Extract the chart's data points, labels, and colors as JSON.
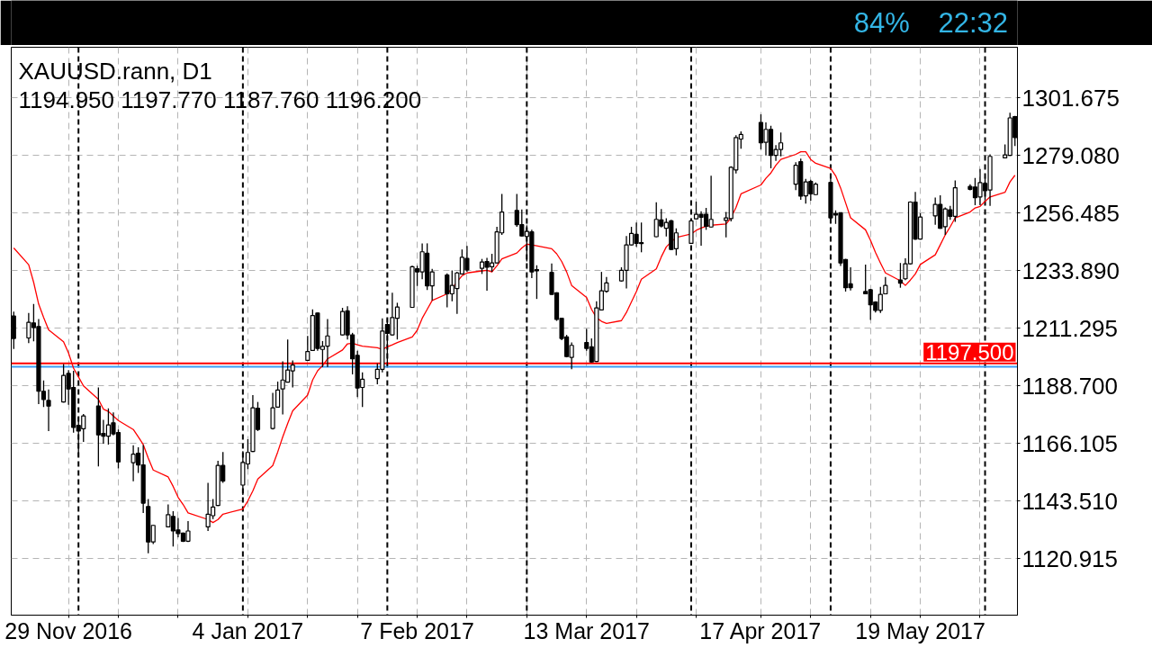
{
  "chart_data": {
    "type": "candlestick",
    "title": "XAUUSD.rann, D1",
    "subtitle": "1194.950 1197.770 1187.760 1196.200",
    "color": "#000000",
    "x": [
      "2016-11-18",
      "2016-11-21",
      "2016-11-22",
      "2016-11-23",
      "2016-11-24",
      "2016-11-25",
      "2016-11-28",
      "2016-11-29",
      "2016-11-30",
      "2016-12-01",
      "2016-12-02",
      "2016-12-05",
      "2016-12-06",
      "2016-12-07",
      "2016-12-08",
      "2016-12-09",
      "2016-12-12",
      "2016-12-13",
      "2016-12-14",
      "2016-12-15",
      "2016-12-16",
      "2016-12-19",
      "2016-12-20",
      "2016-12-21",
      "2016-12-22",
      "2016-12-23",
      "2016-12-27",
      "2016-12-28",
      "2016-12-29",
      "2016-12-30",
      "2017-01-03",
      "2017-01-04",
      "2017-01-05",
      "2017-01-06",
      "2017-01-09",
      "2017-01-10",
      "2017-01-11",
      "2017-01-12",
      "2017-01-13",
      "2017-01-16",
      "2017-01-17",
      "2017-01-18",
      "2017-01-19",
      "2017-01-20",
      "2017-01-23",
      "2017-01-24",
      "2017-01-25",
      "2017-01-26",
      "2017-01-27",
      "2017-01-30",
      "2017-01-31",
      "2017-02-01",
      "2017-02-02",
      "2017-02-03",
      "2017-02-06",
      "2017-02-07",
      "2017-02-08",
      "2017-02-09",
      "2017-02-10",
      "2017-02-13",
      "2017-02-14",
      "2017-02-15",
      "2017-02-16",
      "2017-02-17",
      "2017-02-20",
      "2017-02-21",
      "2017-02-22",
      "2017-02-23",
      "2017-02-24",
      "2017-02-27",
      "2017-02-28",
      "2017-03-01",
      "2017-03-02",
      "2017-03-03",
      "2017-03-06",
      "2017-03-07",
      "2017-03-08",
      "2017-03-09",
      "2017-03-10",
      "2017-03-13",
      "2017-03-14",
      "2017-03-15",
      "2017-03-16",
      "2017-03-17",
      "2017-03-20",
      "2017-03-21",
      "2017-03-22",
      "2017-03-23",
      "2017-03-24",
      "2017-03-27",
      "2017-03-28",
      "2017-03-29",
      "2017-03-30",
      "2017-03-31",
      "2017-04-03",
      "2017-04-04",
      "2017-04-05",
      "2017-04-06",
      "2017-04-07",
      "2017-04-10",
      "2017-04-11",
      "2017-04-12",
      "2017-04-13",
      "2017-04-17",
      "2017-04-18",
      "2017-04-19",
      "2017-04-20",
      "2017-04-21",
      "2017-04-24",
      "2017-04-25",
      "2017-04-26",
      "2017-04-27",
      "2017-04-28",
      "2017-05-01",
      "2017-05-02",
      "2017-05-03",
      "2017-05-04",
      "2017-05-05",
      "2017-05-08",
      "2017-05-09",
      "2017-05-10",
      "2017-05-11",
      "2017-05-12",
      "2017-05-15",
      "2017-05-16",
      "2017-05-17",
      "2017-05-18",
      "2017-05-19",
      "2017-05-22",
      "2017-05-23",
      "2017-05-24",
      "2017-05-25",
      "2017-05-26",
      "2017-05-29",
      "2017-05-30",
      "2017-05-31",
      "2017-06-01",
      "2017-06-02",
      "2017-06-05",
      "2017-06-06",
      "2017-06-07"
    ],
    "ohlc": [
      [
        1216.1,
        1217.8,
        1203.2,
        1207.3
      ],
      [
        1207.5,
        1217.3,
        1205.5,
        1213.6
      ],
      [
        1213.4,
        1220.8,
        1206.2,
        1211.6
      ],
      [
        1212.0,
        1214.9,
        1181.6,
        1186.6
      ],
      [
        1186.6,
        1190.8,
        1180.4,
        1183.4
      ],
      [
        1183.0,
        1187.3,
        1171.0,
        1180.8
      ],
      [
        1182.4,
        1197.3,
        1182.2,
        1192.8
      ],
      [
        1193.6,
        1194.9,
        1181.3,
        1187.5
      ],
      [
        1188.1,
        1194.6,
        1170.4,
        1172.4
      ],
      [
        1173.2,
        1176.3,
        1161.0,
        1171.0
      ],
      [
        1171.9,
        1177.7,
        1166.7,
        1176.9
      ],
      [
        1180.8,
        1188.1,
        1157.1,
        1169.5
      ],
      [
        1170.1,
        1175.4,
        1166.0,
        1169.0
      ],
      [
        1169.0,
        1179.9,
        1165.7,
        1173.4
      ],
      [
        1174.2,
        1178.3,
        1169.3,
        1169.9
      ],
      [
        1170.4,
        1171.6,
        1156.3,
        1158.9
      ],
      [
        1158.6,
        1165.4,
        1151.3,
        1161.9
      ],
      [
        1162.3,
        1164.6,
        1154.6,
        1157.7
      ],
      [
        1157.7,
        1165.5,
        1138.9,
        1142.7
      ],
      [
        1141.4,
        1144.3,
        1123.1,
        1127.5
      ],
      [
        1127.5,
        1134.2,
        1126.7,
        1134.0
      ],
      [
        1133.4,
        1142.2,
        1133.2,
        1138.2
      ],
      [
        1137.5,
        1139.6,
        1125.7,
        1131.8
      ],
      [
        1132.2,
        1136.9,
        1129.3,
        1130.8
      ],
      [
        1131.0,
        1131.2,
        1127.5,
        1127.8
      ],
      [
        1127.8,
        1135.7,
        1127.5,
        1131.8
      ],
      [
        1133.4,
        1150.7,
        1131.8,
        1138.4
      ],
      [
        1137.8,
        1144.3,
        1136.5,
        1141.2
      ],
      [
        1141.8,
        1159.3,
        1141.6,
        1157.5
      ],
      [
        1157.5,
        1162.8,
        1150.7,
        1151.4
      ],
      [
        1149.8,
        1163.1,
        1145.9,
        1158.7
      ],
      [
        1158.1,
        1167.8,
        1156.1,
        1162.6
      ],
      [
        1163.0,
        1185.1,
        1162.8,
        1180.1
      ],
      [
        1179.9,
        1182.4,
        1171.0,
        1171.6
      ],
      [
        1172.0,
        1186.0,
        1171.6,
        1180.1
      ],
      [
        1180.4,
        1190.4,
        1180.2,
        1187.1
      ],
      [
        1187.5,
        1198.3,
        1177.5,
        1191.0
      ],
      [
        1190.2,
        1206.9,
        1190.0,
        1194.9
      ],
      [
        1194.6,
        1198.7,
        1188.1,
        1196.9
      ],
      [
        1198.7,
        1208.3,
        1198.5,
        1202.2
      ],
      [
        1202.6,
        1218.7,
        1202.4,
        1216.3
      ],
      [
        1217.3,
        1217.5,
        1202.5,
        1203.4
      ],
      [
        1203.0,
        1206.3,
        1196.1,
        1204.2
      ],
      [
        1204.3,
        1214.9,
        1196.1,
        1208.3
      ],
      [
        1208.7,
        1219.3,
        1208.5,
        1217.9
      ],
      [
        1218.1,
        1219.9,
        1206.9,
        1208.7
      ],
      [
        1208.7,
        1209.5,
        1193.2,
        1199.3
      ],
      [
        1200.7,
        1202.5,
        1184.3,
        1187.9
      ],
      [
        1188.1,
        1194.0,
        1180.4,
        1191.3
      ],
      [
        1191.6,
        1197.5,
        1189.3,
        1195.2
      ],
      [
        1195.2,
        1215.2,
        1194.0,
        1210.2
      ],
      [
        1212.8,
        1215.2,
        1196.3,
        1209.3
      ],
      [
        1208.7,
        1225.2,
        1208.5,
        1215.5
      ],
      [
        1215.2,
        1221.3,
        1206.9,
        1219.6
      ],
      [
        1219.5,
        1235.8,
        1219.3,
        1235.4
      ],
      [
        1234.6,
        1235.8,
        1227.9,
        1233.4
      ],
      [
        1233.4,
        1244.6,
        1230.5,
        1241.3
      ],
      [
        1240.7,
        1244.6,
        1226.3,
        1227.9
      ],
      [
        1227.9,
        1234.6,
        1222.2,
        1233.4
      ],
      [
        1232.2,
        1232.8,
        1219.5,
        1224.8
      ],
      [
        1224.8,
        1234.0,
        1221.9,
        1228.1
      ],
      [
        1226.9,
        1233.4,
        1216.9,
        1233.0
      ],
      [
        1232.6,
        1242.2,
        1232.4,
        1239.1
      ],
      [
        1238.7,
        1243.6,
        1233.4,
        1234.2
      ],
      [
        1234.8,
        1238.5,
        1232.6,
        1237.3
      ],
      [
        1237.5,
        1238.9,
        1226.0,
        1235.2
      ],
      [
        1235.4,
        1240.5,
        1233.4,
        1236.9
      ],
      [
        1236.9,
        1251.1,
        1236.7,
        1249.1
      ],
      [
        1248.7,
        1264.0,
        1247.9,
        1256.9
      ],
      [
        1257.5,
        1264.0,
        1251.1,
        1251.9
      ],
      [
        1251.9,
        1257.9,
        1247.3,
        1247.5
      ],
      [
        1247.3,
        1251.6,
        1237.5,
        1249.3
      ],
      [
        1249.1,
        1249.9,
        1231.0,
        1233.4
      ],
      [
        1234.3,
        1236.0,
        1222.8,
        1233.8
      ],
      [
        1233.2,
        1236.7,
        1224.4,
        1224.6
      ],
      [
        1225.2,
        1225.4,
        1214.2,
        1214.8
      ],
      [
        1215.2,
        1215.4,
        1206.6,
        1207.3
      ],
      [
        1207.9,
        1208.7,
        1199.9,
        1200.2
      ],
      [
        1199.9,
        1205.7,
        1195.2,
        1204.6
      ],
      [
        1205.7,
        1211.0,
        1202.5,
        1203.4
      ],
      [
        1204.0,
        1207.3,
        1197.9,
        1198.1
      ],
      [
        1198.3,
        1221.9,
        1198.1,
        1219.3
      ],
      [
        1218.5,
        1233.4,
        1218.3,
        1226.0
      ],
      [
        1225.8,
        1231.4,
        1225.2,
        1229.1
      ],
      [
        1229.9,
        1235.2,
        1229.6,
        1234.0
      ],
      [
        1234.0,
        1247.5,
        1226.9,
        1244.0
      ],
      [
        1244.0,
        1251.1,
        1243.8,
        1248.5
      ],
      [
        1248.1,
        1252.8,
        1243.2,
        1244.6
      ],
      [
        1244.9,
        1252.8,
        1241.1,
        1244.5
      ],
      [
        1247.2,
        1260.7,
        1247.0,
        1254.0
      ],
      [
        1253.8,
        1258.1,
        1250.8,
        1251.4
      ],
      [
        1250.5,
        1254.4,
        1247.3,
        1252.8
      ],
      [
        1253.4,
        1253.8,
        1242.0,
        1242.2
      ],
      [
        1242.5,
        1250.5,
        1239.9,
        1248.7
      ],
      [
        1244.6,
        1254.0,
        1244.4,
        1253.4
      ],
      [
        1254.2,
        1261.0,
        1254.0,
        1256.0
      ],
      [
        1256.0,
        1257.2,
        1243.7,
        1254.8
      ],
      [
        1256.0,
        1258.5,
        1249.9,
        1251.3
      ],
      [
        1251.0,
        1271.1,
        1250.8,
        1254.0
      ],
      [
        1253.6,
        1256.9,
        1246.9,
        1254.6
      ],
      [
        1254.3,
        1274.8,
        1253.2,
        1274.4
      ],
      [
        1273.4,
        1287.0,
        1272.0,
        1286.1
      ],
      [
        1285.5,
        1288.5,
        1281.7,
        1287.3
      ],
      [
        1292.0,
        1295.2,
        1281.4,
        1284.0
      ],
      [
        1284.2,
        1292.0,
        1279.1,
        1289.3
      ],
      [
        1289.3,
        1290.7,
        1274.0,
        1279.1
      ],
      [
        1279.1,
        1283.1,
        1276.9,
        1281.4
      ],
      [
        1281.4,
        1288.1,
        1278.7,
        1284.0
      ],
      [
        1267.8,
        1276.4,
        1265.5,
        1275.2
      ],
      [
        1276.6,
        1277.8,
        1261.7,
        1263.1
      ],
      [
        1263.2,
        1269.9,
        1260.2,
        1268.7
      ],
      [
        1268.9,
        1269.5,
        1261.3,
        1264.0
      ],
      [
        1263.7,
        1268.5,
        1263.5,
        1267.8
      ],
      [
        1268.5,
        1271.1,
        1254.2,
        1254.6
      ],
      [
        1256.3,
        1257.5,
        1252.2,
        1255.7
      ],
      [
        1256.6,
        1256.7,
        1235.7,
        1236.9
      ],
      [
        1238.3,
        1238.5,
        1225.7,
        1227.2
      ],
      [
        1228.7,
        1235.2,
        1226.1,
        1227.2
      ],
      [
        1225.7,
        1236.3,
        1224.6,
        1224.8
      ],
      [
        1226.4,
        1226.7,
        1214.6,
        1220.5
      ],
      [
        1221.6,
        1221.9,
        1217.5,
        1218.3
      ],
      [
        1218.3,
        1227.5,
        1217.3,
        1224.6
      ],
      [
        1224.8,
        1231.4,
        1224.6,
        1228.1
      ],
      [
        1230.2,
        1236.9,
        1227.2,
        1229.0
      ],
      [
        1230.7,
        1238.7,
        1230.2,
        1236.6
      ],
      [
        1236.6,
        1261.1,
        1236.3,
        1260.8
      ],
      [
        1260.8,
        1264.8,
        1246.0,
        1246.3
      ],
      [
        1246.3,
        1256.4,
        1246.1,
        1254.9
      ],
      [
        1255.4,
        1262.6,
        1251.9,
        1259.9
      ],
      [
        1259.9,
        1263.4,
        1250.3,
        1250.5
      ],
      [
        1251.1,
        1258.7,
        1247.9,
        1258.1
      ],
      [
        1257.8,
        1259.3,
        1253.8,
        1255.2
      ],
      [
        1255.2,
        1269.3,
        1253.0,
        1266.4
      ],
      [
        1266.9,
        1267.8,
        1265.4,
        1265.8
      ],
      [
        1266.7,
        1270.2,
        1259.6,
        1262.5
      ],
      [
        1262.8,
        1273.8,
        1259.6,
        1268.4
      ],
      [
        1268.1,
        1270.2,
        1261.6,
        1265.2
      ],
      [
        1265.5,
        1279.5,
        1259.3,
        1278.7
      ],
      [
        1278.1,
        1283.4,
        1277.9,
        1279.3
      ],
      [
        1279.1,
        1295.8,
        1278.9,
        1293.8
      ],
      [
        1294.3,
        1294.6,
        1282.8,
        1286.1
      ]
    ],
    "series": [
      {
        "type": "line",
        "color": "#ff0000",
        "values": [
          1242.8,
          1236.2,
          1229.3,
          1220.8,
          1215.5,
          1210.7,
          1206.0,
          1201.6,
          1195.7,
          1192.2,
          1188.7,
          1183.4,
          1179.6,
          1178.7,
          1176.9,
          1175.1,
          1171.6,
          1168.7,
          1165.7,
          1160.4,
          1155.7,
          1153.0,
          1149.3,
          1145.0,
          1142.2,
          1138.9,
          1136.3,
          1135.1,
          1136.3,
          1138.4,
          1140.4,
          1143.6,
          1147.5,
          1152.2,
          1157.5,
          1162.8,
          1168.7,
          1174.0,
          1178.9,
          1185.1,
          1191.0,
          1194.6,
          1196.6,
          1199.3,
          1202.8,
          1205.2,
          1205.4,
          1204.8,
          1204.3,
          1203.7,
          1203.0,
          1204.0,
          1204.8,
          1205.7,
          1207.9,
          1210.5,
          1215.2,
          1218.7,
          1222.2,
          1224.8,
          1226.9,
          1229.5,
          1231.9,
          1233.0,
          1233.8,
          1234.0,
          1233.4,
          1235.8,
          1238.5,
          1240.8,
          1242.8,
          1244.3,
          1244.0,
          1243.6,
          1242.5,
          1240.5,
          1237.5,
          1233.4,
          1228.1,
          1223.4,
          1218.7,
          1215.4,
          1214.0,
          1213.2,
          1214.3,
          1217.5,
          1221.6,
          1225.7,
          1230.5,
          1234.6,
          1239.3,
          1243.2,
          1245.2,
          1246.9,
          1248.3,
          1249.7,
          1250.6,
          1251.3,
          1251.7,
          1252.2,
          1254.6,
          1258.7,
          1264.0,
          1267.5,
          1270.1,
          1272.2,
          1275.2,
          1277.5,
          1279.5,
          1280.5,
          1280.5,
          1277.5,
          1276.0,
          1274.0,
          1271.1,
          1266.3,
          1260.5,
          1254.6,
          1249.9,
          1245.8,
          1241.0,
          1236.9,
          1233.0,
          1229.9,
          1228.1,
          1230.2,
          1232.6,
          1236.3,
          1240.1,
          1244.0,
          1247.9,
          1251.1,
          1254.6,
          1256.9,
          1258.5,
          1259.1,
          1261.1,
          1262.8,
          1264.6,
          1268.7,
          1271.3
        ]
      }
    ],
    "xlim": [
      "2016-11-18",
      "2017-06-07"
    ],
    "xticks": [
      {
        "value": "2016-11-29",
        "label": "29 Nov 2016"
      },
      {
        "value": "2016-12-09",
        "label": null
      },
      {
        "value": "2016-12-21",
        "label": null
      },
      {
        "value": "2017-01-04",
        "label": "4 Jan 2017"
      },
      {
        "value": "2017-01-16",
        "label": null
      },
      {
        "value": "2017-01-26",
        "label": null
      },
      {
        "value": "2017-02-07",
        "label": "7 Feb 2017"
      },
      {
        "value": "2017-02-17",
        "label": null
      },
      {
        "value": "2017-03-01",
        "label": null
      },
      {
        "value": "2017-03-13",
        "label": "13 Mar 2017"
      },
      {
        "value": "2017-03-23",
        "label": null
      },
      {
        "value": "2017-04-04",
        "label": null
      },
      {
        "value": "2017-04-17",
        "label": "17 Apr 2017"
      },
      {
        "value": "2017-04-27",
        "label": null
      },
      {
        "value": "2017-05-09",
        "label": null
      },
      {
        "value": "2017-05-19",
        "label": "19 May 2017"
      },
      {
        "value": "2017-05-31",
        "label": null
      }
    ],
    "ylim": [
      1098.8,
      1321.5
    ],
    "yticks": [
      1120.915,
      {
        "value": 1143.51,
        "label": "1143.510"
      },
      1166.105,
      {
        "value": 1188.7,
        "label": "1188.700"
      },
      1211.295,
      {
        "value": 1233.89,
        "label": "1233.890"
      },
      1256.485,
      {
        "value": 1279.08,
        "label": "1279.080"
      },
      1301.675
    ],
    "ref_lines": [
      {
        "axis": "x",
        "value": "2016-12-01",
        "color": "#000000",
        "line_style": "dashed"
      },
      {
        "axis": "x",
        "value": "2017-01-03",
        "color": "#000000",
        "line_style": "dashed"
      },
      {
        "axis": "x",
        "value": "2017-02-01",
        "color": "#000000",
        "line_style": "dashed"
      },
      {
        "axis": "x",
        "value": "2017-03-01",
        "color": "#000000",
        "line_style": "dashed"
      },
      {
        "axis": "x",
        "value": "2017-04-03",
        "color": "#000000",
        "line_style": "dashed"
      },
      {
        "axis": "x",
        "value": "2017-05-01",
        "color": "#000000",
        "line_style": "dashed"
      },
      {
        "axis": "x",
        "value": "2017-06-01",
        "color": "#000000",
        "line_style": "dashed"
      },
      {
        "axis": "y",
        "value": 1196.2,
        "color": "#3d9ef5"
      },
      {
        "axis": "y",
        "value": 1197.5,
        "label": "1197.500",
        "color": "#ff0000"
      }
    ],
    "grid": true,
    "annotations": [
      "84%",
      "22:32"
    ]
  }
}
